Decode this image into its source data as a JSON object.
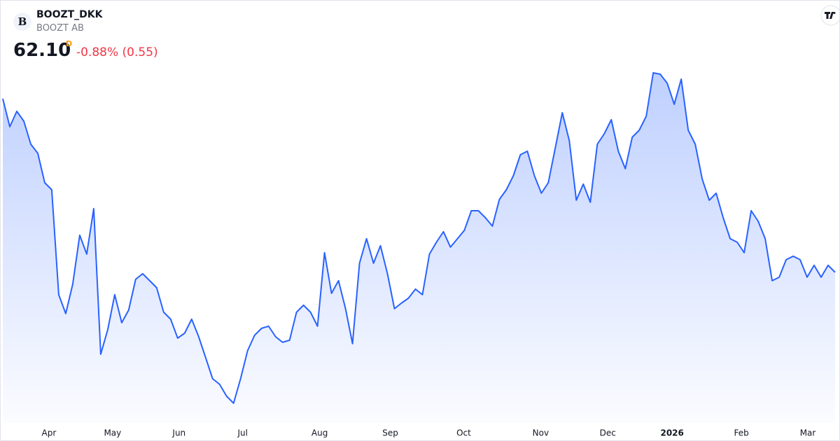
{
  "header": {
    "logo_letter": "B",
    "symbol": "BOOZT_DKK",
    "name": "BOOZT AB",
    "price": "62.10",
    "interval": "D",
    "change": "-0.88% (0.55)"
  },
  "chart_data": {
    "type": "area",
    "color": "#2962ff",
    "x": [
      0,
      1,
      2,
      3,
      4,
      5,
      6,
      7,
      8,
      9,
      10,
      11,
      12,
      13,
      14,
      15,
      16,
      17,
      18,
      19,
      20,
      21,
      22,
      23,
      24,
      25,
      26,
      27,
      28,
      29,
      30,
      31,
      32,
      33,
      34,
      35,
      36,
      37,
      38,
      39,
      40,
      41,
      42,
      43,
      44,
      45,
      46,
      47,
      48,
      49,
      50,
      51,
      52,
      53,
      54,
      55,
      56,
      57,
      58,
      59,
      60,
      61,
      62,
      63,
      64,
      65,
      66,
      67,
      68,
      69,
      70,
      71,
      72,
      73,
      74,
      75,
      76,
      77,
      78,
      79,
      80,
      81,
      82,
      83,
      84,
      85,
      86,
      87,
      88,
      89,
      90,
      91,
      92,
      93,
      94,
      95,
      96,
      97,
      98,
      99,
      100,
      101,
      102,
      103,
      104,
      105,
      106,
      107,
      108,
      109,
      110,
      111,
      112,
      113,
      114,
      115,
      116,
      117,
      118,
      119
    ],
    "values": [
      86.9,
      82.9,
      85.1,
      83.7,
      80.4,
      79.1,
      74.9,
      73.9,
      58.9,
      56.2,
      60.4,
      67.4,
      64.7,
      71.2,
      50.4,
      53.9,
      58.9,
      54.9,
      56.7,
      61.1,
      61.9,
      60.9,
      59.9,
      56.4,
      55.4,
      52.7,
      53.4,
      55.4,
      52.9,
      49.9,
      46.9,
      46.1,
      44.4,
      43.4,
      46.9,
      50.9,
      53.1,
      54.1,
      54.4,
      52.9,
      52.1,
      52.4,
      56.4,
      57.4,
      56.4,
      54.4,
      64.9,
      59.1,
      60.9,
      56.9,
      51.9,
      63.4,
      66.9,
      63.4,
      65.9,
      61.9,
      56.9,
      57.7,
      58.4,
      59.7,
      58.9,
      64.7,
      66.4,
      67.9,
      65.7,
      66.9,
      68.1,
      70.9,
      70.9,
      69.9,
      68.7,
      72.5,
      73.9,
      75.9,
      78.9,
      79.4,
      75.9,
      73.4,
      74.9,
      79.9,
      84.9,
      80.9,
      72.4,
      74.7,
      72.1,
      80.4,
      81.9,
      83.9,
      79.4,
      76.9,
      81.4,
      82.4,
      84.4,
      90.6,
      90.4,
      89.1,
      86.1,
      89.7,
      82.4,
      80.4,
      75.4,
      72.4,
      73.4,
      69.9,
      66.9,
      66.4,
      64.9,
      70.9,
      69.4,
      66.9,
      60.9,
      61.4,
      63.9,
      64.4,
      63.9,
      61.4,
      63.1,
      61.4,
      63.1,
      62.1
    ],
    "xlim": [
      0,
      119
    ],
    "ylim": [
      40,
      100
    ],
    "xticks": [
      {
        "value": 6.6,
        "label": "Apr"
      },
      {
        "value": 15.7,
        "label": "May"
      },
      {
        "value": 25.2,
        "label": "Jun"
      },
      {
        "value": 34.3,
        "label": "Jul"
      },
      {
        "value": 45.3,
        "label": "Aug"
      },
      {
        "value": 55.4,
        "label": "Sep"
      },
      {
        "value": 65.9,
        "label": "Oct"
      },
      {
        "value": 76.9,
        "label": "Nov"
      },
      {
        "value": 86.5,
        "label": "Dec"
      },
      {
        "value": 95.7,
        "label": "2026"
      },
      {
        "value": 105.6,
        "label": "Feb"
      },
      {
        "value": 115.1,
        "label": "Mar"
      }
    ]
  }
}
